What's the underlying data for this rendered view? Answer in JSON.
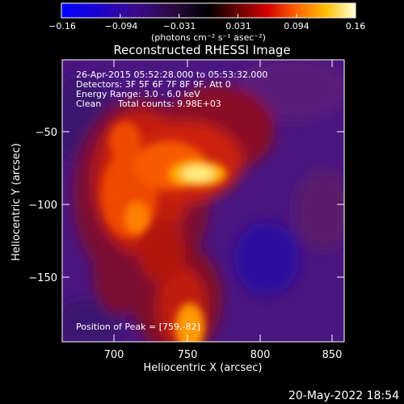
{
  "colorbar": {
    "ticks": [
      "−0.16",
      "−0.094",
      "−0.031",
      "0.031",
      "0.094",
      "0.16"
    ],
    "unit_label": "(photons cm⁻² s⁻¹ asec⁻²)"
  },
  "plot": {
    "title": "Reconstructed RHESSI Image",
    "annotations": {
      "time_range": "26-Apr-2015 05:52:28.000 to 05:53:32.000",
      "detectors": "Detectors: 3F 5F 6F 7F 8F 9F, Att 0",
      "energy": "Energy Range: 3.0 - 6.0 keV",
      "method": "Clean",
      "counts": "Total counts: 9.98E+03",
      "peak": "Position of Peak = [759,-82]"
    },
    "x_axis": {
      "label": "Heliocentric X (arcsec)",
      "ticks": [
        "700",
        "750",
        "800",
        "850"
      ]
    },
    "y_axis": {
      "label": "Heliocentric Y (arcsec)",
      "ticks": [
        "−50",
        "−100",
        "−150"
      ]
    }
  },
  "footer": {
    "timestamp": "20-May-2022 18:54"
  },
  "colors": {
    "background": "#000000",
    "foreground": "#ffffff"
  }
}
